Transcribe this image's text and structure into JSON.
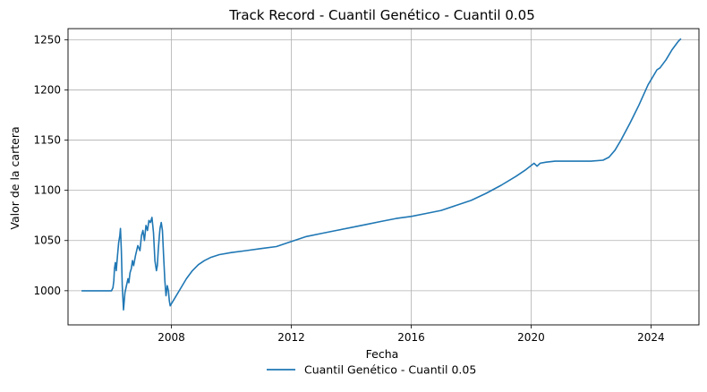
{
  "chart_data": {
    "type": "line",
    "title": "Track Record - Cuantil Genético - Cuantil 0.05",
    "xlabel": "Fecha",
    "ylabel": "Valor de la cartera",
    "xlim": [
      2004.55,
      2025.6
    ],
    "ylim": [
      966,
      1261
    ],
    "x_ticks": [
      2008,
      2012,
      2016,
      2020,
      2024
    ],
    "y_ticks": [
      1000,
      1050,
      1100,
      1150,
      1200,
      1250
    ],
    "grid": true,
    "legend_position": "bottom-center",
    "series": [
      {
        "name": "Cuantil Genético - Cuantil 0.05",
        "color": "#1f77b4",
        "x": [
          2005.0,
          2006.0,
          2006.05,
          2006.08,
          2006.1,
          2006.13,
          2006.16,
          2006.2,
          2006.24,
          2006.28,
          2006.3,
          2006.33,
          2006.36,
          2006.4,
          2006.45,
          2006.5,
          2006.55,
          2006.58,
          2006.62,
          2006.66,
          2006.7,
          2006.74,
          2006.8,
          2006.88,
          2006.95,
          2007.0,
          2007.05,
          2007.1,
          2007.15,
          2007.2,
          2007.25,
          2007.3,
          2007.35,
          2007.4,
          2007.45,
          2007.5,
          2007.53,
          2007.56,
          2007.6,
          2007.62,
          2007.66,
          2007.7,
          2007.74,
          2007.78,
          2007.82,
          2007.86,
          2007.9,
          2007.93,
          2007.96,
          2008.0,
          2008.1,
          2008.3,
          2008.5,
          2008.7,
          2008.9,
          2009.1,
          2009.3,
          2009.6,
          2010.0,
          2010.5,
          2011.0,
          2011.5,
          2012.0,
          2012.5,
          2013.0,
          2013.5,
          2014.0,
          2014.5,
          2015.0,
          2015.5,
          2016.0,
          2016.5,
          2017.0,
          2017.5,
          2018.0,
          2018.5,
          2019.0,
          2019.5,
          2019.8,
          2020.1,
          2020.2,
          2020.3,
          2020.5,
          2020.8,
          2021.2,
          2021.6,
          2022.0,
          2022.4,
          2022.6,
          2022.8,
          2023.0,
          2023.3,
          2023.6,
          2023.9,
          2024.2,
          2024.3,
          2024.5,
          2024.7,
          2024.9,
          2025.0
        ],
        "values": [
          1000,
          1000,
          1003,
          1010,
          1022,
          1028,
          1020,
          1035,
          1048,
          1055,
          1062,
          1040,
          1005,
          981,
          998,
          1005,
          1012,
          1008,
          1018,
          1022,
          1030,
          1025,
          1035,
          1045,
          1040,
          1055,
          1060,
          1050,
          1065,
          1060,
          1070,
          1068,
          1073,
          1058,
          1030,
          1020,
          1025,
          1040,
          1055,
          1062,
          1068,
          1060,
          1035,
          1010,
          995,
          1005,
          1000,
          990,
          985,
          987,
          992,
          1002,
          1012,
          1020,
          1026,
          1030,
          1033,
          1036,
          1038,
          1040,
          1042,
          1044,
          1049,
          1054,
          1057,
          1060,
          1063,
          1066,
          1069,
          1072,
          1074,
          1077,
          1080,
          1085,
          1090,
          1097,
          1105,
          1114,
          1120,
          1127,
          1124,
          1127,
          1128,
          1129,
          1129,
          1129,
          1129,
          1130,
          1133,
          1140,
          1150,
          1167,
          1185,
          1205,
          1220,
          1222,
          1230,
          1240,
          1248,
          1251
        ]
      }
    ]
  }
}
